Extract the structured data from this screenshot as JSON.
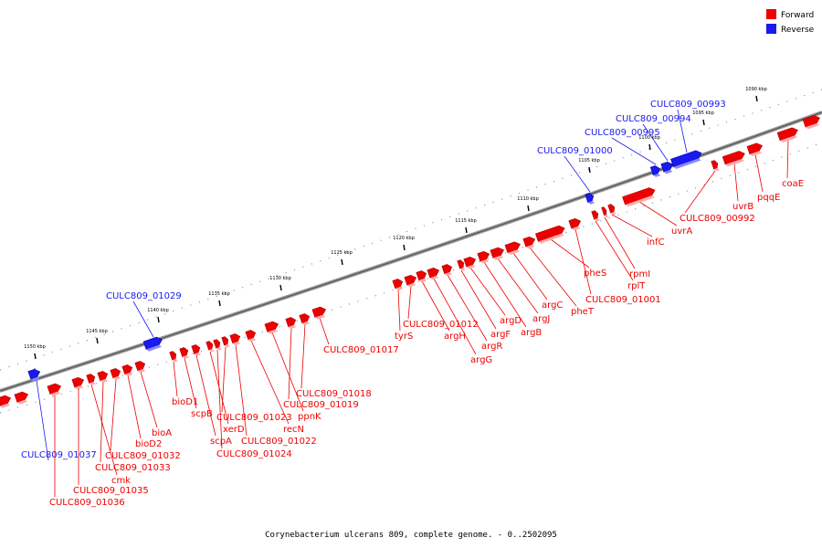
{
  "legend": {
    "forward": {
      "label": "Forward",
      "color": "#ee0000"
    },
    "reverse": {
      "label": "Reverse",
      "color": "#1a1aee"
    }
  },
  "caption": "Corynebacterium ulcerans 809, complete genome. - 0..2502095",
  "scale": [
    {
      "label": "1090 kbp"
    },
    {
      "label": "1095 kbp"
    },
    {
      "label": "1100 kbp"
    },
    {
      "label": "1105 kbp"
    },
    {
      "label": "1110 kbp"
    },
    {
      "label": "1115 kbp"
    },
    {
      "label": "1120 kbp"
    },
    {
      "label": "1125 kbp"
    },
    {
      "label": "1130 kbp"
    },
    {
      "label": "1135 kbp"
    },
    {
      "label": "1140 kbp"
    },
    {
      "label": "1145 kbp"
    },
    {
      "label": "1150 kbp"
    }
  ],
  "genes": [
    {
      "label": "CULC809_00993",
      "strand": "reverse"
    },
    {
      "label": "CULC809_00994",
      "strand": "reverse"
    },
    {
      "label": "CULC809_00995",
      "strand": "reverse"
    },
    {
      "label": "CULC809_01000",
      "strand": "reverse"
    },
    {
      "label": "CULC809_01029",
      "strand": "reverse"
    },
    {
      "label": "CULC809_01037",
      "strand": "reverse"
    },
    {
      "label": "coaE",
      "strand": "forward"
    },
    {
      "label": "pqqE",
      "strand": "forward"
    },
    {
      "label": "uvrB",
      "strand": "forward"
    },
    {
      "label": "CULC809_00992",
      "strand": "forward"
    },
    {
      "label": "uvrA",
      "strand": "forward"
    },
    {
      "label": "infC",
      "strand": "forward"
    },
    {
      "label": "rpmI",
      "strand": "forward"
    },
    {
      "label": "rplT",
      "strand": "forward"
    },
    {
      "label": "CULC809_01001",
      "strand": "forward"
    },
    {
      "label": "pheS",
      "strand": "forward"
    },
    {
      "label": "pheT",
      "strand": "forward"
    },
    {
      "label": "argC",
      "strand": "forward"
    },
    {
      "label": "argJ",
      "strand": "forward"
    },
    {
      "label": "argB",
      "strand": "forward"
    },
    {
      "label": "argD",
      "strand": "forward"
    },
    {
      "label": "argF",
      "strand": "forward"
    },
    {
      "label": "argR",
      "strand": "forward"
    },
    {
      "label": "argG",
      "strand": "forward"
    },
    {
      "label": "argH",
      "strand": "forward"
    },
    {
      "label": "CULC809_01012",
      "strand": "forward"
    },
    {
      "label": "tyrS",
      "strand": "forward"
    },
    {
      "label": "CULC809_01017",
      "strand": "forward"
    },
    {
      "label": "CULC809_01018",
      "strand": "forward"
    },
    {
      "label": "CULC809_01019",
      "strand": "forward"
    },
    {
      "label": "ppnK",
      "strand": "forward"
    },
    {
      "label": "recN",
      "strand": "forward"
    },
    {
      "label": "CULC809_01022",
      "strand": "forward"
    },
    {
      "label": "CULC809_01023",
      "strand": "forward"
    },
    {
      "label": "CULC809_01024",
      "strand": "forward"
    },
    {
      "label": "xerD",
      "strand": "forward"
    },
    {
      "label": "scpA",
      "strand": "forward"
    },
    {
      "label": "scpB",
      "strand": "forward"
    },
    {
      "label": "bioD1",
      "strand": "forward"
    },
    {
      "label": "bioA",
      "strand": "forward"
    },
    {
      "label": "bioD2",
      "strand": "forward"
    },
    {
      "label": "CULC809_01032",
      "strand": "forward"
    },
    {
      "label": "CULC809_01033",
      "strand": "forward"
    },
    {
      "label": "cmk",
      "strand": "forward"
    },
    {
      "label": "CULC809_01035",
      "strand": "forward"
    },
    {
      "label": "CULC809_01036",
      "strand": "forward"
    }
  ]
}
